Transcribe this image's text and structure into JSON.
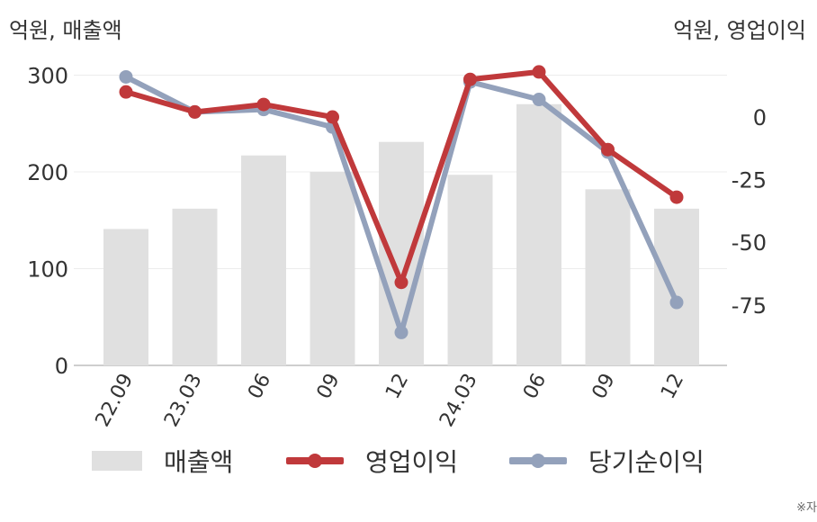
{
  "chart_data": {
    "type": "bar+line",
    "units_left": "억원, 매출액",
    "units_right": "억원, 영업이익",
    "categories": [
      "22.09",
      "23.03",
      "06",
      "09",
      "12",
      "24.03",
      "06",
      "09",
      "12"
    ],
    "y_left": {
      "min": 0,
      "max": 300,
      "ticks": [
        0,
        100,
        200,
        300
      ]
    },
    "y_right": {
      "min": -100,
      "max": 17,
      "ticks": [
        0,
        -25,
        -50,
        -75
      ]
    },
    "grid": true,
    "legend_position": "bottom",
    "series": [
      {
        "name": "매출액",
        "type": "bar",
        "axis": "left",
        "color": "#e0e0e0",
        "values": [
          141,
          162,
          217,
          200,
          231,
          197,
          270,
          182,
          162
        ]
      },
      {
        "name": "영업이익",
        "type": "line",
        "axis": "right",
        "color": "#c0393b",
        "values": [
          10,
          2,
          5,
          0,
          -66,
          15,
          18,
          -13,
          -32
        ]
      },
      {
        "name": "당기순이익",
        "type": "line",
        "axis": "right",
        "color": "#93a1bb",
        "values": [
          16,
          2,
          3,
          -4,
          -86,
          14,
          7,
          -14,
          -74
        ]
      }
    ]
  },
  "source_mark": "※자"
}
